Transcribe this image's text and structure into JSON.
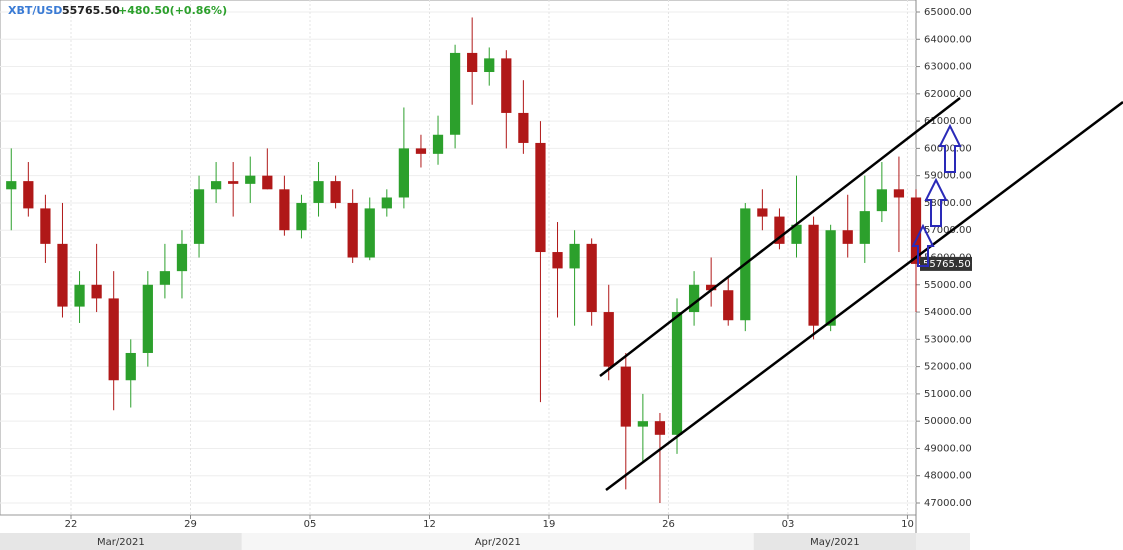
{
  "chart_data": {
    "type": "candlestick",
    "symbol": "XBT/USD",
    "change": "+480.50(+0.86%)",
    "last_price": {
      "value": 55765.5,
      "label": "55765.50"
    },
    "up_color": "#2ca02c",
    "down_color": "#b01818",
    "grid": true,
    "x": [
      "2021-03-18",
      "2021-03-19",
      "2021-03-20",
      "2021-03-21",
      "2021-03-22",
      "2021-03-23",
      "2021-03-24",
      "2021-03-25",
      "2021-03-26",
      "2021-03-27",
      "2021-03-28",
      "2021-03-29",
      "2021-03-30",
      "2021-03-31",
      "2021-04-01",
      "2021-04-02",
      "2021-04-03",
      "2021-04-04",
      "2021-04-05",
      "2021-04-06",
      "2021-04-07",
      "2021-04-08",
      "2021-04-09",
      "2021-04-10",
      "2021-04-11",
      "2021-04-12",
      "2021-04-13",
      "2021-04-14",
      "2021-04-15",
      "2021-04-16",
      "2021-04-17",
      "2021-04-18",
      "2021-04-19",
      "2021-04-20",
      "2021-04-21",
      "2021-04-22",
      "2021-04-23",
      "2021-04-24",
      "2021-04-25",
      "2021-04-26",
      "2021-04-27",
      "2021-04-28",
      "2021-04-29",
      "2021-04-30",
      "2021-05-01",
      "2021-05-02",
      "2021-05-03",
      "2021-05-04",
      "2021-05-05",
      "2021-05-06",
      "2021-05-07",
      "2021-05-08",
      "2021-05-09",
      "2021-05-10"
    ],
    "open": [
      58500,
      58800,
      57800,
      56500,
      54200,
      55000,
      54500,
      51500,
      52500,
      55000,
      55500,
      56500,
      58500,
      58800,
      58700,
      59000,
      58500,
      57000,
      58000,
      58800,
      58000,
      56000,
      57800,
      58200,
      60000,
      59800,
      60500,
      63500,
      62800,
      63300,
      61300,
      60200,
      56200,
      55600,
      56500,
      54000,
      52000,
      49800,
      50000,
      49500,
      54000,
      55000,
      54800,
      53700,
      57800,
      57500,
      56500,
      57200,
      53500,
      57000,
      56500,
      57700,
      58500,
      58200
    ],
    "high": [
      60000,
      59500,
      58300,
      58000,
      55500,
      56500,
      55500,
      53000,
      55500,
      56500,
      57000,
      59000,
      59500,
      59500,
      59700,
      60000,
      59000,
      58300,
      59500,
      59000,
      58500,
      58200,
      58500,
      61500,
      60500,
      61200,
      63800,
      64800,
      63700,
      63600,
      62500,
      61000,
      57300,
      57000,
      56700,
      55000,
      52500,
      51000,
      50300,
      54500,
      55500,
      56000,
      55300,
      58000,
      58500,
      57800,
      59000,
      57500,
      57200,
      58300,
      59000,
      59500,
      59700,
      58500
    ],
    "low": [
      57000,
      57500,
      55800,
      53800,
      53600,
      54000,
      50400,
      50500,
      52000,
      54500,
      54500,
      56000,
      58000,
      57500,
      58000,
      58500,
      56800,
      56700,
      57500,
      57800,
      55800,
      55900,
      57500,
      57800,
      59300,
      59400,
      60000,
      61600,
      62300,
      60000,
      59800,
      50700,
      53800,
      53500,
      53500,
      51500,
      47500,
      48500,
      47000,
      48800,
      53500,
      54200,
      53500,
      53300,
      57000,
      56300,
      56000,
      53000,
      53300,
      56000,
      55800,
      57300,
      56200,
      54000
    ],
    "close": [
      58800,
      57800,
      56500,
      54200,
      55000,
      54500,
      51500,
      52500,
      55000,
      55500,
      56500,
      58500,
      58800,
      58700,
      59000,
      58500,
      57000,
      58000,
      58800,
      58000,
      56000,
      57800,
      58200,
      60000,
      59800,
      60500,
      63500,
      62800,
      63300,
      61300,
      60200,
      56200,
      55600,
      56500,
      54000,
      52000,
      49800,
      50000,
      49500,
      54000,
      55000,
      54800,
      53700,
      57800,
      57500,
      56500,
      57200,
      53500,
      57000,
      56500,
      57700,
      58500,
      58200,
      55765.5
    ],
    "xlim": [
      "2021-03-17T20:10",
      "2021-05-10T12:00"
    ],
    "xticks": [
      {
        "value": "2021-03-22",
        "label": "22"
      },
      {
        "value": "2021-03-29",
        "label": "29"
      },
      {
        "value": "2021-04-05",
        "label": "05"
      },
      {
        "value": "2021-04-12",
        "label": "12"
      },
      {
        "value": "2021-04-19",
        "label": "19"
      },
      {
        "value": "2021-04-26",
        "label": "26"
      },
      {
        "value": "2021-05-03",
        "label": "03"
      },
      {
        "value": "2021-05-10",
        "label": "10"
      }
    ],
    "months": [
      {
        "start": "2021-03-01",
        "label": "Mar/2021"
      },
      {
        "start": "2021-04-01",
        "label": "Apr/2021"
      },
      {
        "start": "2021-05-01",
        "label": "May/2021"
      }
    ],
    "ylim": [
      46560,
      65440
    ],
    "yticks": [
      {
        "value": 47000,
        "label": "47000.00"
      },
      {
        "value": 48000,
        "label": "48000.00"
      },
      {
        "value": 49000,
        "label": "49000.00"
      },
      {
        "value": 50000,
        "label": "50000.00"
      },
      {
        "value": 51000,
        "label": "51000.00"
      },
      {
        "value": 52000,
        "label": "52000.00"
      },
      {
        "value": 53000,
        "label": "53000.00"
      },
      {
        "value": 54000,
        "label": "54000.00"
      },
      {
        "value": 55000,
        "label": "55000.00"
      },
      {
        "value": 56000,
        "label": "56000.00"
      },
      {
        "value": 57000,
        "label": "57000.00"
      },
      {
        "value": 58000,
        "label": "58000.00"
      },
      {
        "value": 59000,
        "label": "59000.00"
      },
      {
        "value": 60000,
        "label": "60000.00"
      },
      {
        "value": 61000,
        "label": "61000.00"
      },
      {
        "value": 62000,
        "label": "62000.00"
      },
      {
        "value": 63000,
        "label": "63000.00"
      },
      {
        "value": 64000,
        "label": "64000.00"
      },
      {
        "value": 65000,
        "label": "65000.00"
      }
    ]
  }
}
